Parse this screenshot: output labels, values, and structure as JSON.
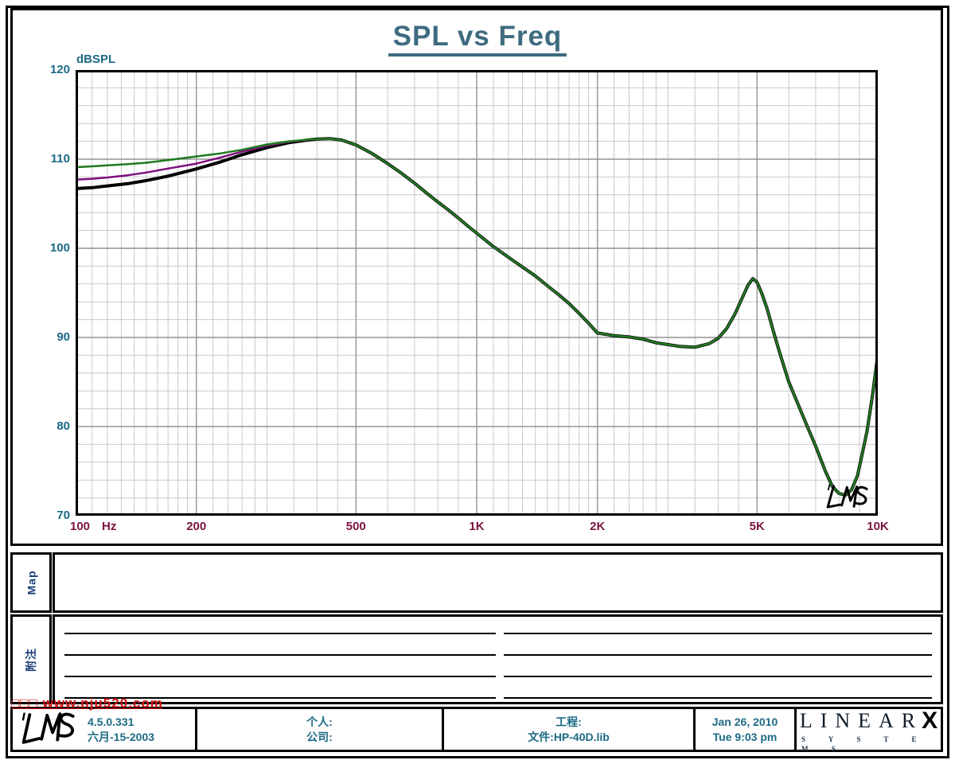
{
  "page": {
    "watermark_red": "□□□ www.nju520.com",
    "sidebar": {
      "map_label": "Map",
      "notes_label": "附注"
    },
    "plot_watermark": "LMS",
    "footer": {
      "lms_logo": "LMS",
      "version": "4.5.0.331",
      "version_date": "六月-15-2003",
      "personal_label": "个人:",
      "company_label": "公司:",
      "project_label": "工程:",
      "file_label": "文件:HP-40D.lib",
      "date": "Jan 26, 2010",
      "time": "Tue  9:03 pm",
      "brand_main": "LINEAR",
      "brand_x": "X",
      "brand_sub": "S Y S T E M S"
    }
  },
  "chart_data": {
    "type": "line",
    "title": "SPL vs Freq",
    "ylabel": "dBSPL",
    "xlabel": "",
    "x_unit": "Hz",
    "x_scale": "log",
    "x_range": [
      100,
      10000
    ],
    "y_range": [
      70,
      120
    ],
    "grid": true,
    "legend_position": "none",
    "x_ticks": [
      {
        "f": 100,
        "label": "100"
      },
      {
        "f": 200,
        "label": "200"
      },
      {
        "f": 500,
        "label": "500"
      },
      {
        "f": 1000,
        "label": "1K"
      },
      {
        "f": 2000,
        "label": "2K"
      },
      {
        "f": 5000,
        "label": "5K"
      },
      {
        "f": 10000,
        "label": "10K"
      }
    ],
    "y_ticks": [
      70,
      80,
      90,
      100,
      110,
      120
    ],
    "x_grid_major": [
      200,
      500,
      1000,
      2000,
      5000
    ],
    "x_grid_minor_multipliers": [
      1.1,
      1.2,
      1.3,
      1.4,
      1.5,
      1.6,
      1.7,
      1.8,
      1.9,
      2.2,
      2.4,
      2.6,
      2.8,
      3,
      3.5,
      4,
      4.5,
      6,
      7,
      8,
      9
    ],
    "y_grid_major": [
      80,
      90,
      100,
      110
    ],
    "y_grid_minor_step": 2,
    "common_points": [
      [
        400,
        112.25
      ],
      [
        430,
        112.3
      ],
      [
        460,
        112.15
      ],
      [
        500,
        111.6
      ],
      [
        550,
        110.6
      ],
      [
        600,
        109.5
      ],
      [
        650,
        108.4
      ],
      [
        700,
        107.3
      ],
      [
        750,
        106.2
      ],
      [
        800,
        105.2
      ],
      [
        850,
        104.3
      ],
      [
        900,
        103.4
      ],
      [
        950,
        102.5
      ],
      [
        1000,
        101.7
      ],
      [
        1100,
        100.2
      ],
      [
        1200,
        99.0
      ],
      [
        1300,
        97.9
      ],
      [
        1400,
        96.9
      ],
      [
        1500,
        95.8
      ],
      [
        1600,
        94.8
      ],
      [
        1700,
        93.8
      ],
      [
        1800,
        92.7
      ],
      [
        1900,
        91.6
      ],
      [
        2000,
        90.5
      ],
      [
        2100,
        90.35
      ],
      [
        2200,
        90.2
      ],
      [
        2400,
        90.05
      ],
      [
        2600,
        89.8
      ],
      [
        2800,
        89.4
      ],
      [
        3000,
        89.2
      ],
      [
        3200,
        89.0
      ],
      [
        3500,
        88.9
      ],
      [
        3800,
        89.3
      ],
      [
        4000,
        89.9
      ],
      [
        4200,
        91.0
      ],
      [
        4400,
        92.6
      ],
      [
        4600,
        94.5
      ],
      [
        4750,
        95.9
      ],
      [
        4880,
        96.6
      ],
      [
        5000,
        96.2
      ],
      [
        5150,
        94.8
      ],
      [
        5300,
        93.2
      ],
      [
        5500,
        90.6
      ],
      [
        5700,
        88.2
      ],
      [
        6000,
        85.0
      ],
      [
        6300,
        82.7
      ],
      [
        6600,
        80.5
      ],
      [
        7000,
        77.8
      ],
      [
        7400,
        75.0
      ],
      [
        7700,
        73.3
      ],
      [
        8000,
        72.5
      ],
      [
        8300,
        72.3
      ],
      [
        8600,
        72.9
      ],
      [
        8900,
        74.5
      ],
      [
        9100,
        76.5
      ],
      [
        9400,
        79.5
      ],
      [
        9700,
        83.5
      ],
      [
        10000,
        88.0
      ]
    ],
    "series": [
      {
        "name": "curve-black",
        "color": "#000000",
        "width": 4,
        "points": [
          [
            100,
            106.7
          ],
          [
            110,
            106.8
          ],
          [
            120,
            107.0
          ],
          [
            135,
            107.25
          ],
          [
            150,
            107.6
          ],
          [
            170,
            108.1
          ],
          [
            200,
            108.9
          ],
          [
            230,
            109.7
          ],
          [
            260,
            110.5
          ],
          [
            300,
            111.3
          ],
          [
            340,
            111.85
          ],
          [
            380,
            112.15
          ]
        ]
      },
      {
        "name": "curve-purple",
        "color": "#7d0f7d",
        "width": 2.5,
        "points": [
          [
            100,
            107.7
          ],
          [
            110,
            107.8
          ],
          [
            120,
            107.95
          ],
          [
            135,
            108.2
          ],
          [
            150,
            108.5
          ],
          [
            170,
            108.95
          ],
          [
            200,
            109.5
          ],
          [
            230,
            110.2
          ],
          [
            260,
            110.85
          ],
          [
            300,
            111.5
          ],
          [
            340,
            111.95
          ],
          [
            380,
            112.18
          ]
        ]
      },
      {
        "name": "curve-green",
        "color": "#1e7a1e",
        "width": 2.5,
        "points": [
          [
            100,
            109.1
          ],
          [
            110,
            109.2
          ],
          [
            120,
            109.3
          ],
          [
            135,
            109.45
          ],
          [
            150,
            109.6
          ],
          [
            170,
            109.9
          ],
          [
            200,
            110.3
          ],
          [
            230,
            110.65
          ],
          [
            260,
            111.05
          ],
          [
            300,
            111.65
          ],
          [
            340,
            112.0
          ],
          [
            380,
            112.2
          ]
        ]
      }
    ]
  }
}
